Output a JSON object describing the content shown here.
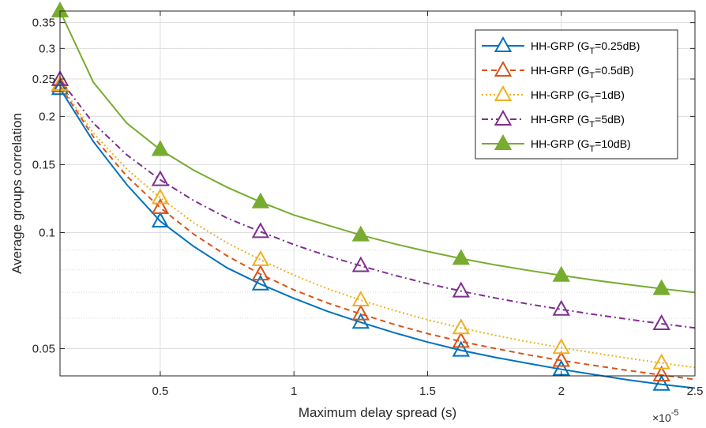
{
  "chart_data": {
    "type": "line",
    "xlabel": "Maximum delay spread (s)",
    "ylabel": "Average groups correlation",
    "x_exponent_label": "×10",
    "x_exponent_power": "-5",
    "x_scale": 1e-05,
    "xlim": [
      0.125,
      2.5
    ],
    "ylim": [
      0.0425,
      0.375
    ],
    "yscale": "log",
    "xticks": [
      0.5,
      1,
      1.5,
      2,
      2.5
    ],
    "xtick_labels": [
      "0.5",
      "1",
      "1.5",
      "2",
      "2.5"
    ],
    "yticks": [
      0.05,
      0.1,
      0.15,
      0.2,
      0.25,
      0.3,
      0.35
    ],
    "ytick_labels": [
      "0.05",
      "0.1",
      "0.15",
      "0.2",
      "0.25",
      "0.3",
      "0.35"
    ],
    "grid": true,
    "minor_grid": true,
    "legend_position": "top-right",
    "x": [
      0.125,
      0.25,
      0.375,
      0.5,
      0.625,
      0.75,
      0.875,
      1.0,
      1.125,
      1.25,
      1.375,
      1.5,
      1.625,
      1.75,
      1.875,
      2.0,
      2.125,
      2.25,
      2.375,
      2.5
    ],
    "marker_x": [
      0.125,
      0.5,
      0.875,
      1.25,
      1.625,
      2.0,
      2.375
    ],
    "series": [
      {
        "name": "HH-GRP (G",
        "name_sub": "T",
        "name_tail": "=0.25dB)",
        "color": "#0072bd",
        "dash": "solid",
        "marker": "triangle-open",
        "values": [
          0.236,
          0.172,
          0.133,
          0.107,
          0.092,
          0.081,
          0.0735,
          0.0675,
          0.0625,
          0.0585,
          0.055,
          0.052,
          0.0495,
          0.0475,
          0.0458,
          0.0442,
          0.0428,
          0.0415,
          0.0404,
          0.0395
        ]
      },
      {
        "name": "HH-GRP (G",
        "name_sub": "T",
        "name_tail": "=0.5dB)",
        "color": "#d95319",
        "dash": "dashed",
        "marker": "triangle-open",
        "values": [
          0.24,
          0.177,
          0.14,
          0.116,
          0.099,
          0.087,
          0.078,
          0.071,
          0.0657,
          0.0615,
          0.0578,
          0.0547,
          0.0522,
          0.0501,
          0.0482,
          0.0466,
          0.0452,
          0.0439,
          0.0427,
          0.0416
        ]
      },
      {
        "name": "HH-GRP (G",
        "name_sub": "T",
        "name_tail": "=1dB)",
        "color": "#edb120",
        "dash": "dotted",
        "marker": "triangle-open",
        "values": [
          0.242,
          0.181,
          0.146,
          0.123,
          0.106,
          0.094,
          0.085,
          0.0775,
          0.0715,
          0.0668,
          0.0628,
          0.0594,
          0.0566,
          0.0542,
          0.0521,
          0.0503,
          0.0487,
          0.0472,
          0.0459,
          0.0447
        ]
      },
      {
        "name": "HH-GRP (G",
        "name_sub": "T",
        "name_tail": "=5dB)",
        "color": "#7e2f8e",
        "dash": "dashdot",
        "marker": "triangle-open",
        "values": [
          0.249,
          0.192,
          0.159,
          0.137,
          0.121,
          0.109,
          0.1005,
          0.093,
          0.087,
          0.082,
          0.0775,
          0.0737,
          0.0705,
          0.0677,
          0.0653,
          0.0632,
          0.0613,
          0.0596,
          0.058,
          0.0566
        ]
      },
      {
        "name": "HH-GRP (G",
        "name_sub": "T",
        "name_tail": "=10dB)",
        "color": "#77ac30",
        "dash": "solid",
        "marker": "triangle-filled",
        "values": [
          0.375,
          0.245,
          0.192,
          0.164,
          0.145,
          0.131,
          0.12,
          0.111,
          0.1045,
          0.0985,
          0.0935,
          0.0893,
          0.0856,
          0.0825,
          0.0798,
          0.0774,
          0.0752,
          0.0733,
          0.0715,
          0.0699
        ]
      }
    ]
  }
}
